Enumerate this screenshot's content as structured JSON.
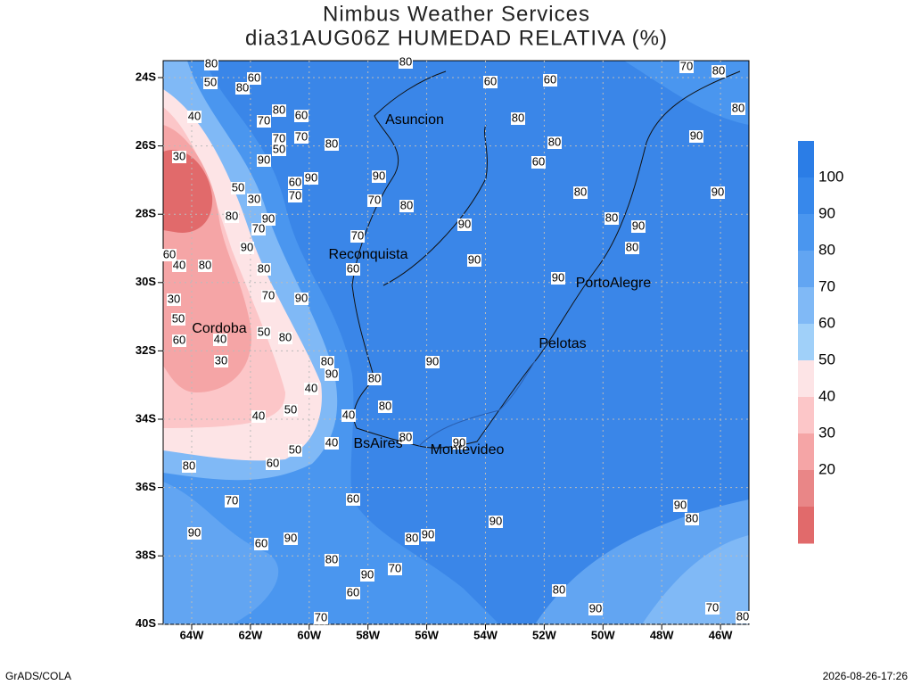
{
  "header": {
    "title": "Nimbus Weather Services",
    "subtitle": "dia31AUG06Z HUMEDAD RELATIVA (%)"
  },
  "map": {
    "lat_labels": [
      "24S",
      "26S",
      "28S",
      "30S",
      "32S",
      "34S",
      "36S",
      "38S",
      "40S"
    ],
    "lon_labels": [
      "64W",
      "62W",
      "60W",
      "58W",
      "56W",
      "54W",
      "52W",
      "50W",
      "48W",
      "46W"
    ],
    "cities": [
      "Asuncion",
      "Reconquista",
      "PortoAlegre",
      "Cordoba",
      "Pelotas",
      "BsAires",
      "Montevideo"
    ],
    "contour_labels": [
      80,
      50,
      80,
      60,
      40,
      70,
      80,
      60,
      70,
      70,
      80,
      30,
      50,
      90,
      60,
      90,
      70,
      50,
      30,
      80,
      90,
      70,
      90,
      80,
      60,
      40,
      80,
      30,
      70,
      90,
      50,
      60,
      40,
      30,
      50,
      80,
      90,
      80,
      40,
      50,
      40,
      40,
      50,
      60,
      80,
      70,
      90,
      60,
      90,
      80,
      60,
      70,
      90,
      70,
      90,
      80,
      90,
      80,
      90,
      80,
      90,
      70,
      80,
      80,
      60,
      60,
      80,
      80,
      60,
      80,
      90,
      90,
      90,
      80,
      90,
      80,
      90,
      80,
      90,
      70,
      80,
      80,
      80,
      90,
      60,
      90,
      80,
      60,
      70,
      90,
      70,
      80,
      40
    ]
  },
  "colorbar": {
    "labels": [
      100,
      90,
      80,
      70,
      60,
      50,
      40,
      30,
      20
    ],
    "colors": [
      "#2b7de6",
      "#3788eb",
      "#4a96ef",
      "#62a5f2",
      "#80b9f6",
      "#a0d0f9",
      "#fde4e6",
      "#fcc6c8",
      "#f5a5a6",
      "#e98687",
      "#e16a6b"
    ]
  },
  "footer": {
    "left": "GrADS/COLA",
    "right": "2026-08-26-17:26"
  }
}
